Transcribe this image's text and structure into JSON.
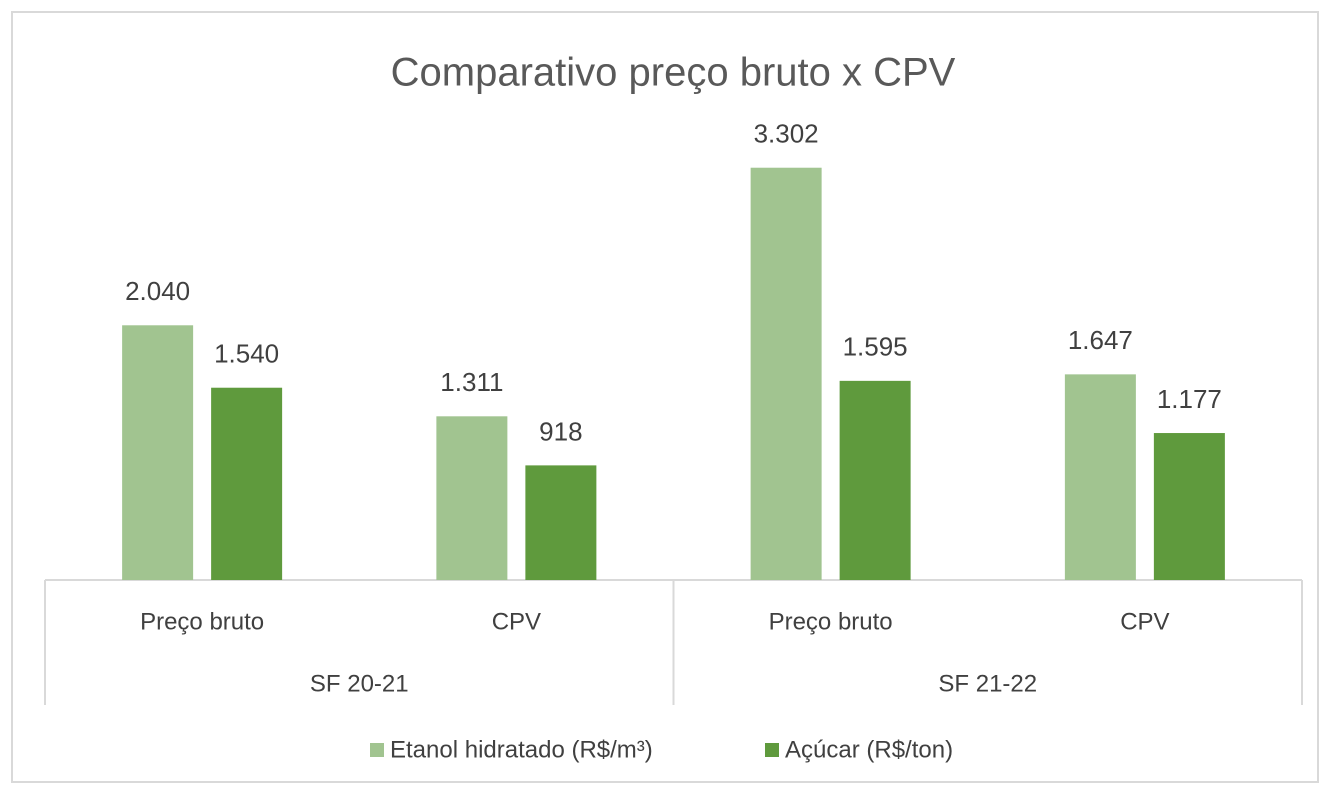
{
  "chart_data": {
    "type": "bar",
    "title": "Comparativo preço bruto x CPV",
    "groups": [
      {
        "name": "SF 20-21",
        "categories": [
          "Preço bruto",
          "CPV"
        ]
      },
      {
        "name": "SF 21-22",
        "categories": [
          "Preço bruto",
          "CPV"
        ]
      }
    ],
    "series": [
      {
        "name": "Etanol hidratado (R$/m³)",
        "color": "#a1c490",
        "values": [
          2040,
          1311,
          3302,
          1647
        ],
        "value_labels": [
          "2.040",
          "1.311",
          "3.302",
          "1.647"
        ]
      },
      {
        "name": "Açúcar (R$/ton)",
        "color": "#5f9a3d",
        "values": [
          1540,
          918,
          1595,
          1177
        ],
        "value_labels": [
          "1.540",
          "918",
          "1.595",
          "1.177"
        ]
      }
    ],
    "ylim": [
      0,
      3500
    ],
    "legend": "bottom"
  }
}
